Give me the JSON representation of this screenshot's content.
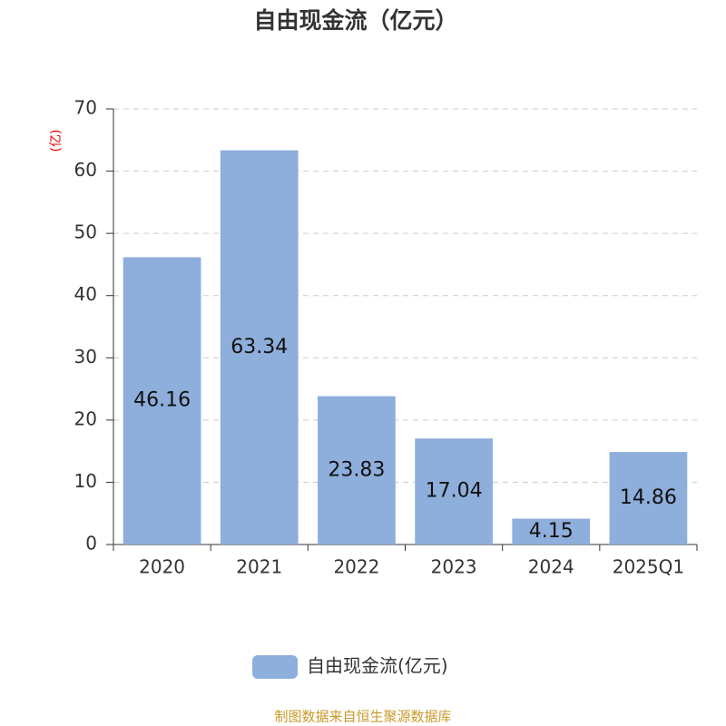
{
  "chart_data": {
    "type": "bar",
    "title": "自由现金流（亿元）",
    "y_label": "(亿)",
    "categories": [
      "2020",
      "2021",
      "2022",
      "2023",
      "2024",
      "2025Q1"
    ],
    "series": [
      {
        "name": "自由现金流(亿元)",
        "color": "#8eaedb",
        "values": [
          46.16,
          63.34,
          23.83,
          17.04,
          4.15,
          14.86
        ]
      }
    ],
    "ylim": [
      0,
      70
    ],
    "yticks": [
      0,
      10,
      20,
      30,
      40,
      50,
      60,
      70
    ],
    "grid": true,
    "source": "制图数据来自恒生聚源数据库"
  }
}
